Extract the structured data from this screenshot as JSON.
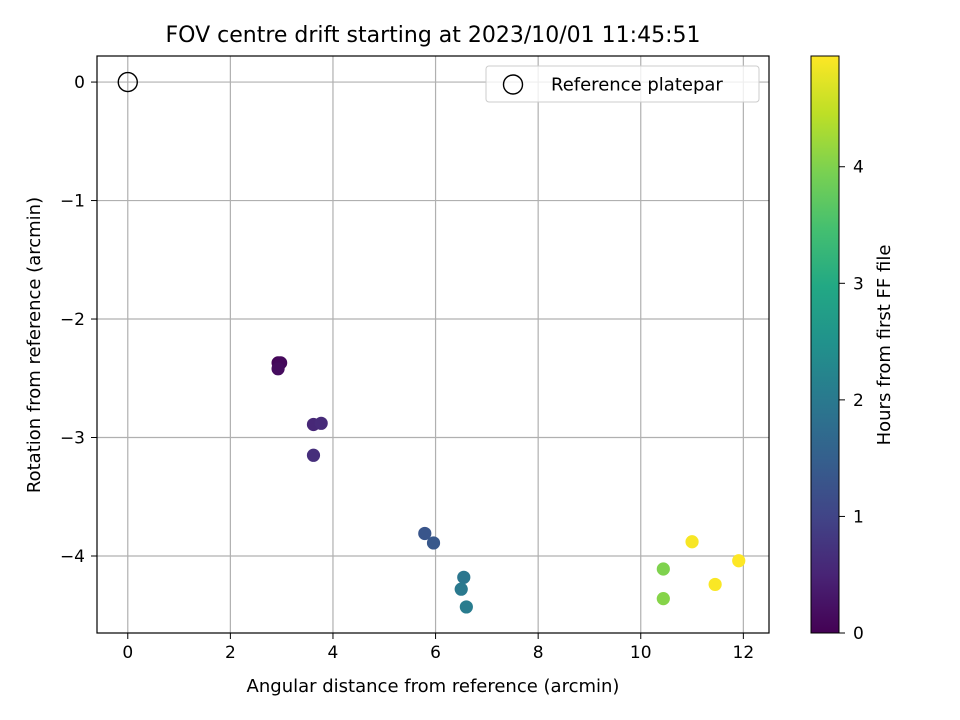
{
  "chart_data": {
    "type": "scatter",
    "title": "FOV centre drift starting at 2023/10/01 11:45:51",
    "xlabel": "Angular distance from reference (arcmin)",
    "ylabel": "Rotation from reference (arcmin)",
    "xlim": [
      -0.6,
      12.5
    ],
    "ylim": [
      -4.65,
      0.22
    ],
    "xticks": [
      0,
      2,
      4,
      6,
      8,
      10,
      12
    ],
    "yticks": [
      0,
      -1,
      -2,
      -3,
      -4
    ],
    "xtick_labels": [
      "0",
      "2",
      "4",
      "6",
      "8",
      "10",
      "12"
    ],
    "ytick_labels": [
      "0",
      "−1",
      "−2",
      "−3",
      "−4"
    ],
    "grid": true,
    "reference": {
      "name": "Reference platepar",
      "x": 0,
      "y": 0,
      "marker": "open-circle"
    },
    "legend": {
      "position": "top-right",
      "entries": [
        "Reference platepar"
      ]
    },
    "points": [
      {
        "x": 2.93,
        "y": -2.37,
        "hours": 0.05
      },
      {
        "x": 2.98,
        "y": -2.37,
        "hours": 0.1
      },
      {
        "x": 2.93,
        "y": -2.42,
        "hours": 0.15
      },
      {
        "x": 3.62,
        "y": -2.89,
        "hours": 0.55
      },
      {
        "x": 3.77,
        "y": -2.88,
        "hours": 0.6
      },
      {
        "x": 3.62,
        "y": -3.15,
        "hours": 0.65
      },
      {
        "x": 5.79,
        "y": -3.81,
        "hours": 1.3
      },
      {
        "x": 5.96,
        "y": -3.89,
        "hours": 1.35
      },
      {
        "x": 6.55,
        "y": -4.18,
        "hours": 1.95
      },
      {
        "x": 6.5,
        "y": -4.28,
        "hours": 2.0
      },
      {
        "x": 6.6,
        "y": -4.43,
        "hours": 2.05
      },
      {
        "x": 10.44,
        "y": -4.11,
        "hours": 4.0
      },
      {
        "x": 10.44,
        "y": -4.36,
        "hours": 4.05
      },
      {
        "x": 11.0,
        "y": -3.88,
        "hours": 4.9
      },
      {
        "x": 11.45,
        "y": -4.24,
        "hours": 4.92
      },
      {
        "x": 11.91,
        "y": -4.04,
        "hours": 4.95
      }
    ],
    "colorbar": {
      "label": "Hours from first FF file",
      "colormap": "viridis",
      "range": [
        0,
        4.95
      ],
      "ticks": [
        0,
        1,
        2,
        3,
        4
      ],
      "tick_labels": [
        "0",
        "1",
        "2",
        "3",
        "4"
      ]
    }
  }
}
